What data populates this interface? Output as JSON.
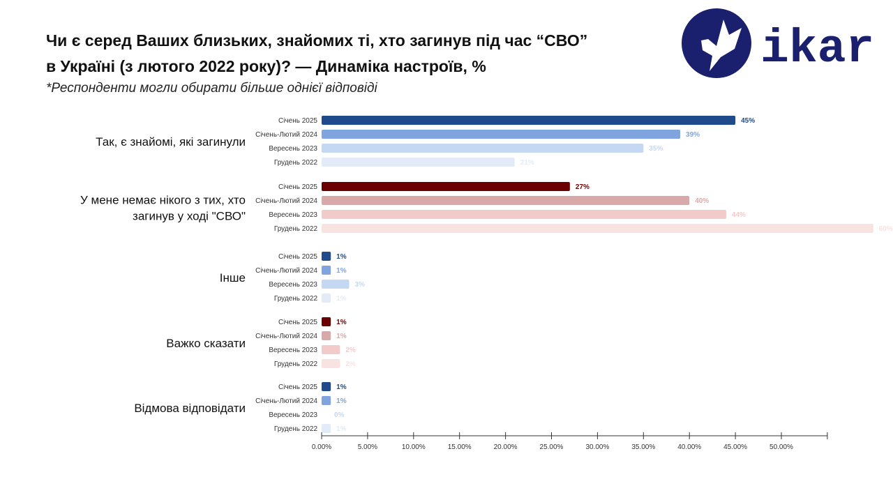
{
  "title_line1": "Чи є серед Ваших близьких, знайомих ті, хто загинув під час “СВО”",
  "title_line2": "в Україні (з лютого 2022 року)? — Динаміка настроїв, %",
  "subtitle": "*Респонденти могли обирати більше однієї відповіді",
  "logo": {
    "text": "ikar",
    "color": "#1a1f6e"
  },
  "chart_data": {
    "type": "bar",
    "orientation": "horizontal",
    "title": "Чи є серед Ваших близьких, знайомих ті, хто загинув під час “СВО” в Україні (з лютого 2022 року)? — Динаміка настроїв, %",
    "periods": [
      "Січень 2025",
      "Січень-Лютий 2024",
      "Вересень 2023",
      "Грудень 2022"
    ],
    "categories": [
      {
        "label": [
          "Так, є знайомі, які загинули"
        ],
        "palette": "blue",
        "values": [
          45,
          39,
          35,
          21
        ],
        "labels": [
          "45%",
          "39%",
          "35%",
          "21%"
        ]
      },
      {
        "label": [
          "У мене немає нікого з тих, хто",
          "загинув у ході \"СВО\""
        ],
        "palette": "red",
        "values": [
          27,
          40,
          44,
          60
        ],
        "labels": [
          "27%",
          "40%",
          "44%",
          "60%"
        ]
      },
      {
        "label": [
          "Інше"
        ],
        "palette": "blue",
        "values": [
          1,
          1,
          3,
          1
        ],
        "labels": [
          "1%",
          "1%",
          "3%",
          "1%"
        ]
      },
      {
        "label": [
          "Важко сказати"
        ],
        "palette": "red",
        "values": [
          1,
          1,
          2,
          2
        ],
        "labels": [
          "1%",
          "1%",
          "2%",
          "2%"
        ]
      },
      {
        "label": [
          "Відмова відповідати"
        ],
        "palette": "blue",
        "values": [
          1,
          1,
          0,
          1
        ],
        "labels": [
          "1%",
          "1%",
          "0%",
          "1%"
        ]
      }
    ],
    "xticks": [
      "0.00%",
      "5.00%",
      "10.00%",
      "15.00%",
      "20.00%",
      "25.00%",
      "30.00%",
      "35.00%",
      "40.00%",
      "45.00%",
      "50.00%"
    ],
    "xlim": [
      0,
      55
    ],
    "grid": false,
    "colors": {
      "blue": [
        "#1f4a8c",
        "#80a4df",
        "#c5d8f3",
        "#e3ebf8"
      ],
      "red": [
        "#6b0000",
        "#d9a9a9",
        "#f3caca",
        "#f8e2e2"
      ]
    }
  }
}
